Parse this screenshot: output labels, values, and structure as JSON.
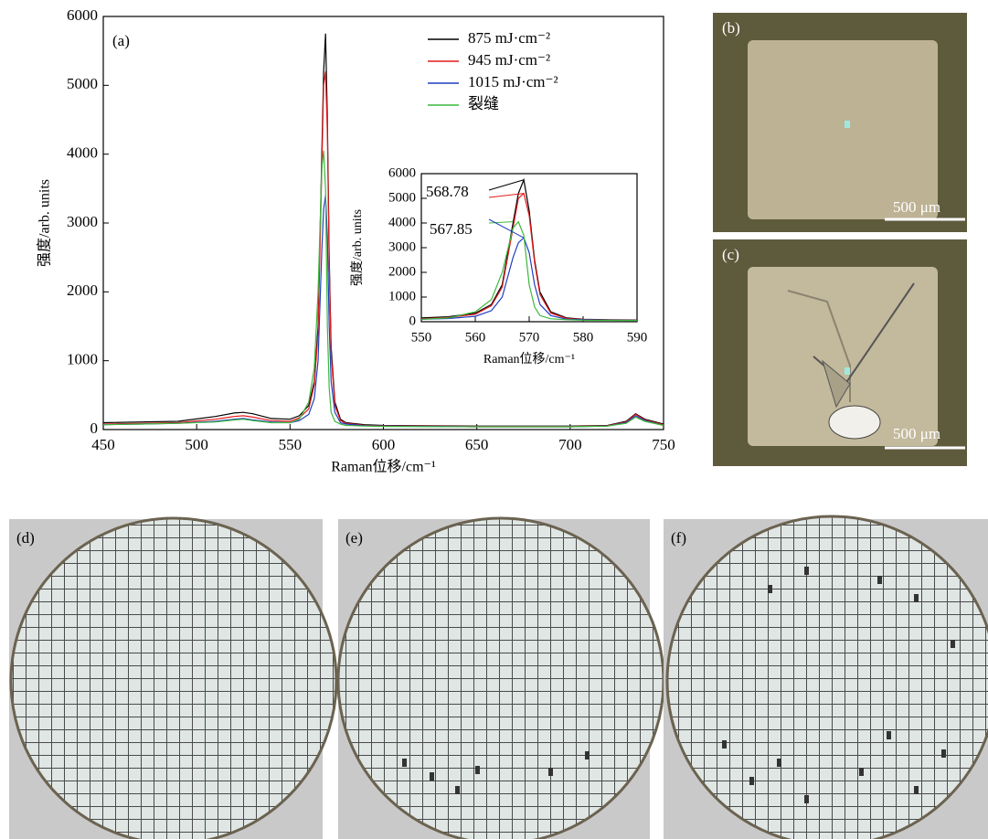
{
  "chart_data": [
    {
      "type": "line",
      "label": "(a)",
      "x_label": "Raman位移/cm⁻¹",
      "y_label": "强度/arb. units",
      "xlim": [
        450,
        750
      ],
      "ylim": [
        0,
        6000
      ],
      "xticks": [
        450,
        500,
        550,
        600,
        650,
        700,
        750
      ],
      "yticks": [
        0,
        1000,
        2000,
        3000,
        4000,
        5000,
        6000
      ],
      "legend": "upper right",
      "x": [
        450,
        470,
        490,
        510,
        520,
        525,
        530,
        540,
        550,
        555,
        560,
        563,
        565,
        567,
        568,
        569,
        570,
        571,
        572,
        574,
        577,
        580,
        590,
        600,
        650,
        700,
        720,
        730,
        735,
        740,
        750
      ],
      "series": [
        {
          "name": "875 mJ·cm⁻²",
          "color": "#000000",
          "values": [
            100,
            110,
            120,
            190,
            240,
            250,
            230,
            160,
            150,
            200,
            350,
            700,
            1500,
            4000,
            5200,
            5750,
            4500,
            2500,
            1200,
            400,
            150,
            100,
            70,
            60,
            50,
            50,
            60,
            120,
            230,
            150,
            80
          ]
        },
        {
          "name": "945 mJ·cm⁻²",
          "color": "#e41a1c",
          "values": [
            80,
            90,
            100,
            150,
            190,
            200,
            180,
            130,
            120,
            170,
            300,
            650,
            1400,
            3800,
            5000,
            5200,
            4300,
            2400,
            1100,
            350,
            130,
            90,
            60,
            55,
            45,
            45,
            55,
            110,
            220,
            140,
            70
          ]
        },
        {
          "name": "1015 mJ·cm⁻²",
          "color": "#1f3fbf",
          "values": [
            70,
            80,
            90,
            120,
            150,
            160,
            140,
            110,
            100,
            130,
            220,
            450,
            1000,
            2600,
            3200,
            3400,
            2800,
            1500,
            700,
            250,
            100,
            80,
            55,
            50,
            40,
            40,
            50,
            100,
            200,
            130,
            60
          ]
        },
        {
          "name": "裂缝",
          "color": "#3cb83c",
          "values": [
            70,
            80,
            90,
            110,
            140,
            150,
            130,
            100,
            100,
            150,
            400,
            900,
            2000,
            3800,
            4050,
            3500,
            1500,
            600,
            250,
            120,
            80,
            60,
            50,
            45,
            40,
            40,
            50,
            90,
            180,
            120,
            60
          ]
        }
      ]
    },
    {
      "type": "line",
      "x_label": "Raman位移/cm⁻¹",
      "y_label": "强度/arb. units",
      "xlim": [
        550,
        590
      ],
      "ylim": [
        0,
        6000
      ],
      "xticks": [
        550,
        560,
        570,
        580,
        590
      ],
      "yticks": [
        0,
        1000,
        2000,
        3000,
        4000,
        5000,
        6000
      ],
      "annotations": [
        "568.78",
        "567.85"
      ],
      "x": [
        550,
        555,
        560,
        563,
        565,
        567,
        568,
        569,
        570,
        571,
        572,
        574,
        577,
        580,
        585,
        590
      ],
      "series": [
        {
          "color": "#000000",
          "values": [
            150,
            200,
            350,
            700,
            1500,
            4000,
            5200,
            5750,
            4500,
            2500,
            1200,
            400,
            150,
            100,
            80,
            70
          ]
        },
        {
          "color": "#e41a1c",
          "values": [
            120,
            170,
            300,
            650,
            1400,
            3800,
            5000,
            5200,
            4300,
            2400,
            1100,
            350,
            130,
            90,
            70,
            60
          ]
        },
        {
          "color": "#1f3fbf",
          "values": [
            100,
            130,
            220,
            450,
            1000,
            2600,
            3200,
            3400,
            2800,
            1500,
            700,
            250,
            100,
            80,
            60,
            55
          ]
        },
        {
          "color": "#3cb83c",
          "values": [
            100,
            150,
            400,
            900,
            2000,
            3800,
            4050,
            3500,
            1500,
            600,
            250,
            120,
            80,
            60,
            55,
            50
          ]
        }
      ]
    }
  ],
  "photos": [
    {
      "label": "(b)",
      "scale_bar": "500 μm"
    },
    {
      "label": "(c)",
      "scale_bar": "500 μm"
    },
    {
      "label": "(d)"
    },
    {
      "label": "(e)"
    },
    {
      "label": "(f)"
    }
  ]
}
